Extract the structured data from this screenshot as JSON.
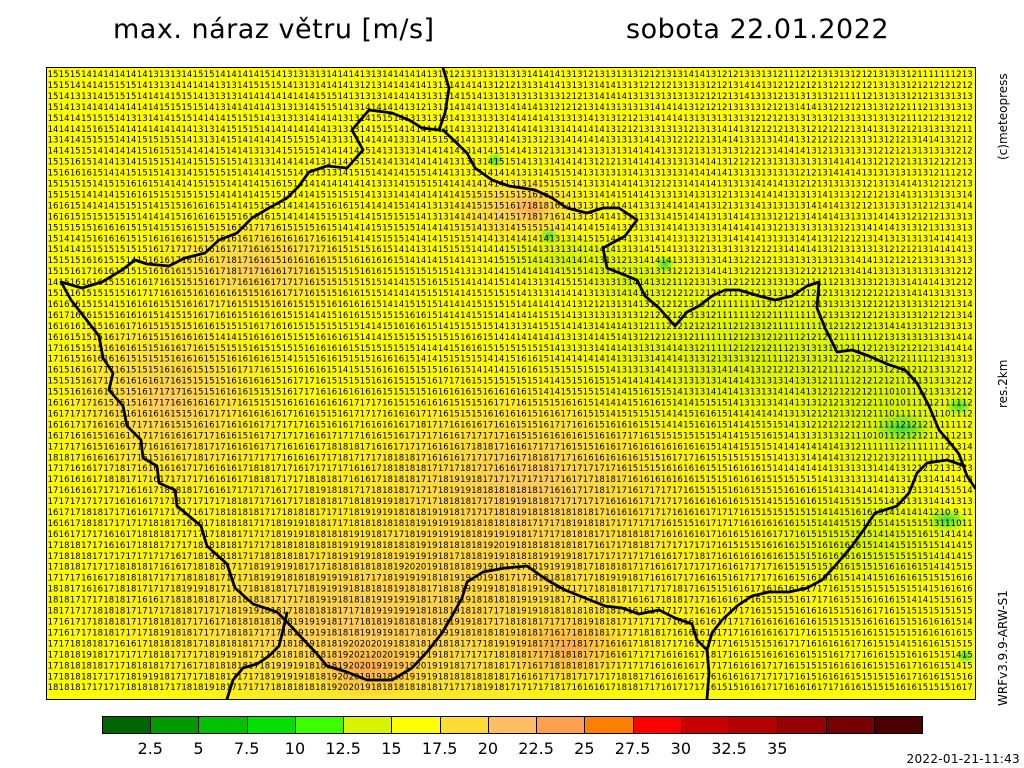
{
  "header": {
    "title": "max. náraz větru [m/s]",
    "date": "sobota 22.01.2022"
  },
  "side_labels": {
    "copyright": "(c)meteopress",
    "resolution": "res.2km",
    "model": "WRFv3.9.9-ARW-S1"
  },
  "legend": {
    "colors": [
      "#006400",
      "#009900",
      "#00c000",
      "#00e100",
      "#3cff00",
      "#d8f200",
      "#ffff00",
      "#ffdc32",
      "#ffbe64",
      "#ffa050",
      "#ff7f00",
      "#ff0000",
      "#c80000",
      "#b40000",
      "#960000",
      "#780000",
      "#4b0000"
    ],
    "labels": [
      "2.5",
      "5",
      "7.5",
      "10",
      "12.5",
      "15",
      "17.5",
      "20",
      "22.5",
      "25",
      "27.5",
      "30",
      "32.5",
      "35"
    ]
  },
  "footer": {
    "timestamp": "2022-01-21-11:43"
  }
}
